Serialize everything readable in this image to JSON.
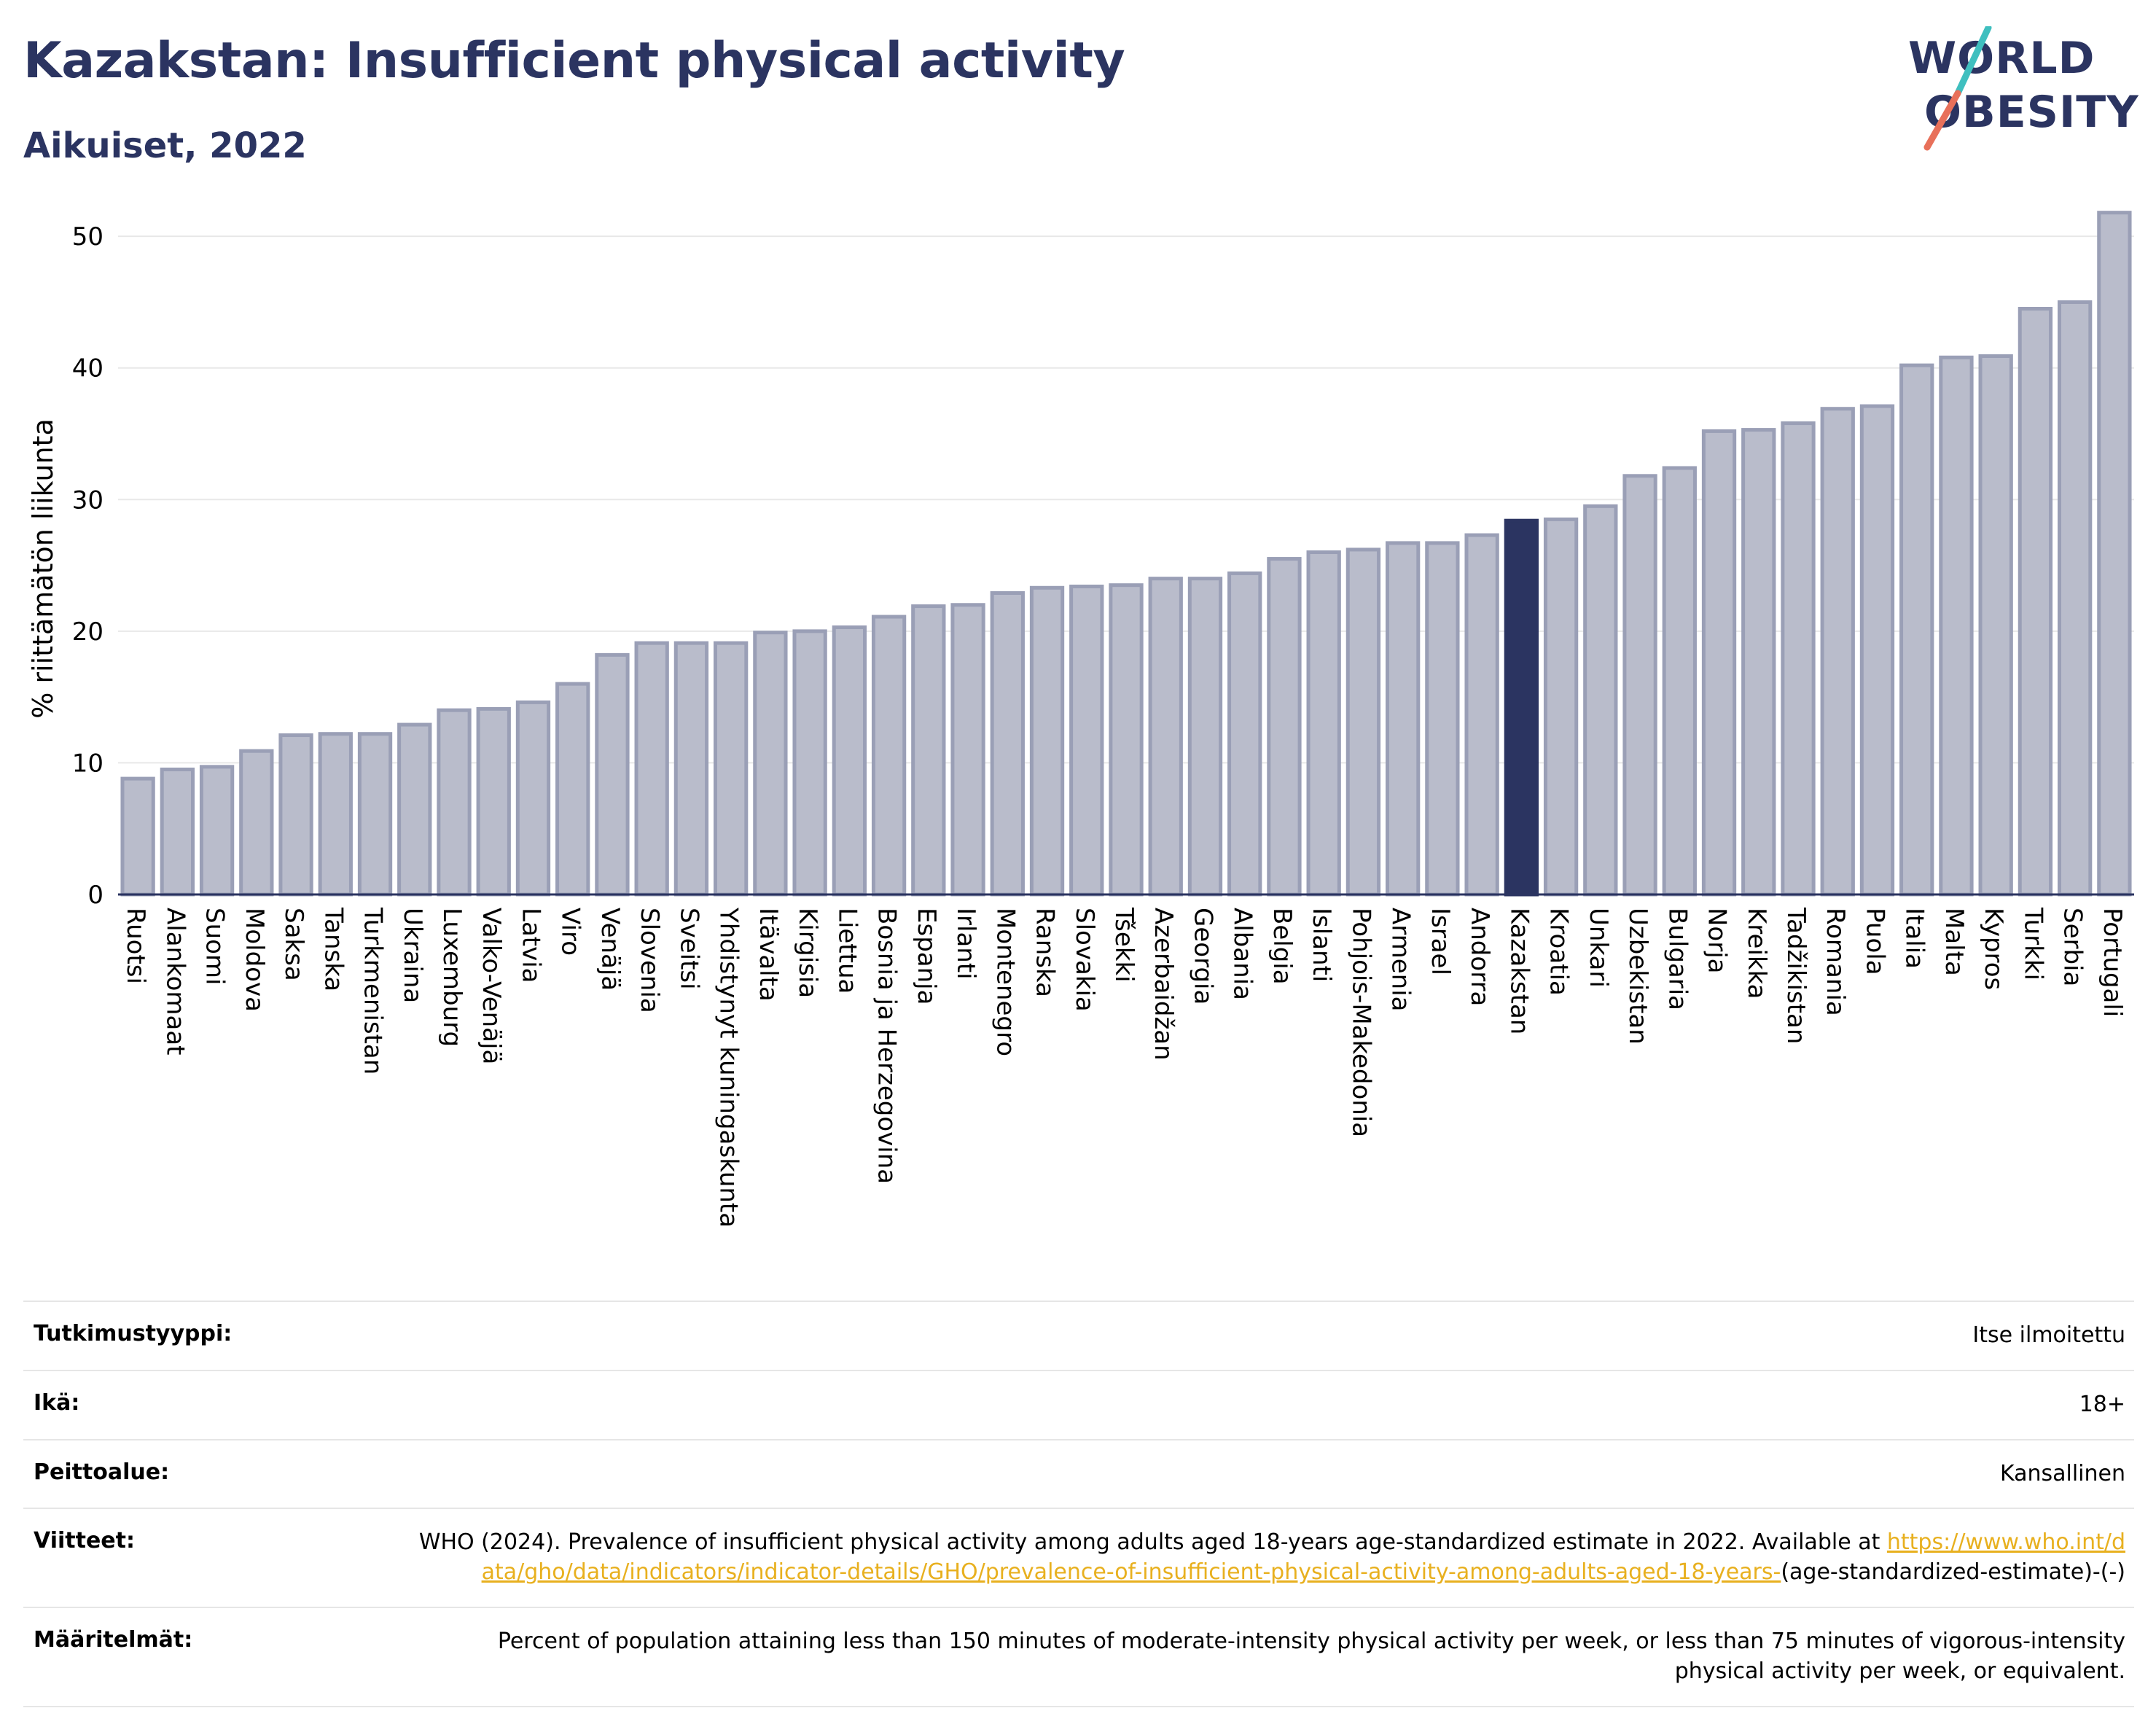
{
  "header": {
    "title": "Kazakstan: Insufficient physical activity",
    "subtitle": "Aikuiset, 2022"
  },
  "logo": {
    "line1": "WORLD",
    "line2": "OBESITY",
    "slash_colors": [
      "#3fbfbf",
      "#e8705a"
    ]
  },
  "colors": {
    "bar": "#b9bccb",
    "bar_stroke": "#9a9fb6",
    "highlight": "#2b3461",
    "grid": "#e8e8e8",
    "text": "#2b3461",
    "link": "#e8b01f"
  },
  "chart_data": {
    "type": "bar",
    "title": "Kazakstan: Insufficient physical activity",
    "subtitle": "Aikuiset, 2022",
    "xlabel": "",
    "ylabel": "% riittämätön liikunta",
    "ylim": [
      0,
      53
    ],
    "yticks": [
      0,
      10,
      20,
      30,
      40,
      50
    ],
    "grid": true,
    "highlight_category": "Kazakstan",
    "categories": [
      "Ruotsi",
      "Alankomaat",
      "Suomi",
      "Moldova",
      "Saksa",
      "Tanska",
      "Turkmenistan",
      "Ukraina",
      "Luxemburg",
      "Valko-Venäjä",
      "Latvia",
      "Viro",
      "Venäjä",
      "Slovenia",
      "Sveitsi",
      "Yhdistynyt kuningaskunta",
      "Itävalta",
      "Kirgisia",
      "Liettua",
      "Bosnia ja Herzegovina",
      "Espanja",
      "Irlanti",
      "Montenegro",
      "Ranska",
      "Slovakia",
      "Tšekki",
      "Azerbaidžan",
      "Georgia",
      "Albania",
      "Belgia",
      "Islanti",
      "Pohjois-Makedonia",
      "Armenia",
      "Israel",
      "Andorra",
      "Kazakstan",
      "Kroatia",
      "Unkari",
      "Uzbekistan",
      "Bulgaria",
      "Norja",
      "Kreikka",
      "Tadžikistan",
      "Romania",
      "Puola",
      "Italia",
      "Malta",
      "Kypros",
      "Turkki",
      "Serbia",
      "Portugali"
    ],
    "values": [
      8.8,
      9.5,
      9.7,
      10.9,
      12.1,
      12.2,
      12.2,
      12.9,
      14.0,
      14.1,
      14.6,
      16.0,
      18.2,
      19.1,
      19.1,
      19.1,
      19.9,
      20.0,
      20.3,
      21.1,
      21.9,
      22.0,
      22.9,
      23.3,
      23.4,
      23.5,
      24.0,
      24.0,
      24.4,
      25.5,
      26.0,
      26.2,
      26.7,
      26.7,
      27.3,
      28.4,
      28.5,
      29.5,
      31.8,
      32.4,
      35.2,
      35.3,
      35.8,
      36.9,
      37.1,
      40.2,
      40.8,
      40.9,
      44.5,
      45.0,
      51.8
    ]
  },
  "meta": {
    "rows": [
      {
        "label": "Tutkimustyyppi:",
        "value": "Itse ilmoitettu"
      },
      {
        "label": "Ikä:",
        "value": "18+"
      },
      {
        "label": "Peittoalue:",
        "value": "Kansallinen"
      }
    ],
    "references": {
      "label": "Viitteet:",
      "text": "WHO (2024). Prevalence of insufficient physical activity among adults aged 18-years age-standardized estimate in 2022. Available at",
      "link": "https://www.who.int/data/gho/data/indicators/indicator-details/GHO/prevalence-of-insufficient-physical-activity-among-adults-aged-18-years-",
      "suffix": "(age-standardized-estimate)-(-)"
    },
    "definitions": {
      "label": "Määritelmät:",
      "text": "Percent of population attaining less than 150 minutes of moderate-intensity physical activity per week, or less than 75 minutes of vigorous-intensity physical activity per week, or equivalent."
    }
  }
}
